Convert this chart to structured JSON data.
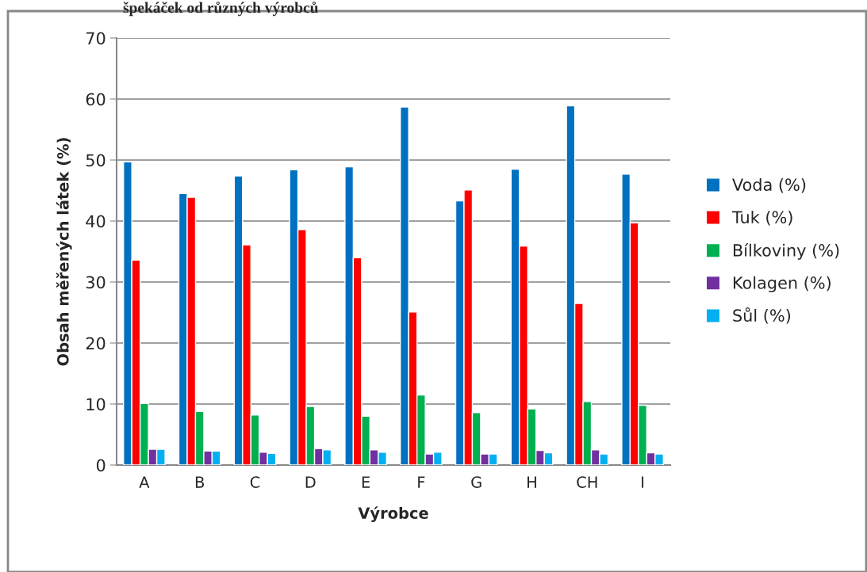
{
  "chart_data": {
    "type": "bar",
    "title": "špekáček od různých výrobců",
    "xlabel": "Výrobce",
    "ylabel": "Obsah měřených látek (%)",
    "categories": [
      "A",
      "B",
      "C",
      "D",
      "E",
      "F",
      "G",
      "H",
      "CH",
      "I"
    ],
    "series": [
      {
        "name": "Voda (%)",
        "color": "#0070c0",
        "values": [
          49.7,
          44.5,
          47.4,
          48.4,
          48.9,
          58.7,
          43.3,
          48.5,
          58.9,
          47.7
        ]
      },
      {
        "name": "Tuk (%)",
        "color": "#ff0000",
        "values": [
          33.6,
          43.9,
          36.1,
          38.6,
          34.0,
          25.1,
          45.1,
          35.9,
          26.5,
          39.7
        ]
      },
      {
        "name": "Bílkoviny (%)",
        "color": "#00b050",
        "values": [
          10.1,
          8.8,
          8.2,
          9.6,
          8.0,
          11.5,
          8.6,
          9.2,
          10.4,
          9.8
        ]
      },
      {
        "name": "Kolagen (%)",
        "color": "#7030a0",
        "values": [
          2.6,
          2.3,
          2.1,
          2.7,
          2.5,
          1.8,
          1.8,
          2.4,
          2.5,
          2.0
        ]
      },
      {
        "name": "Sůl (%)",
        "color": "#00b0f0",
        "values": [
          2.6,
          2.3,
          1.9,
          2.5,
          2.1,
          2.1,
          1.8,
          2.0,
          1.8,
          1.8
        ]
      }
    ],
    "ylim": [
      0,
      70
    ],
    "yticks": [
      0,
      10,
      20,
      30,
      40,
      50,
      60,
      70
    ],
    "grid": "y",
    "legend": "right"
  }
}
